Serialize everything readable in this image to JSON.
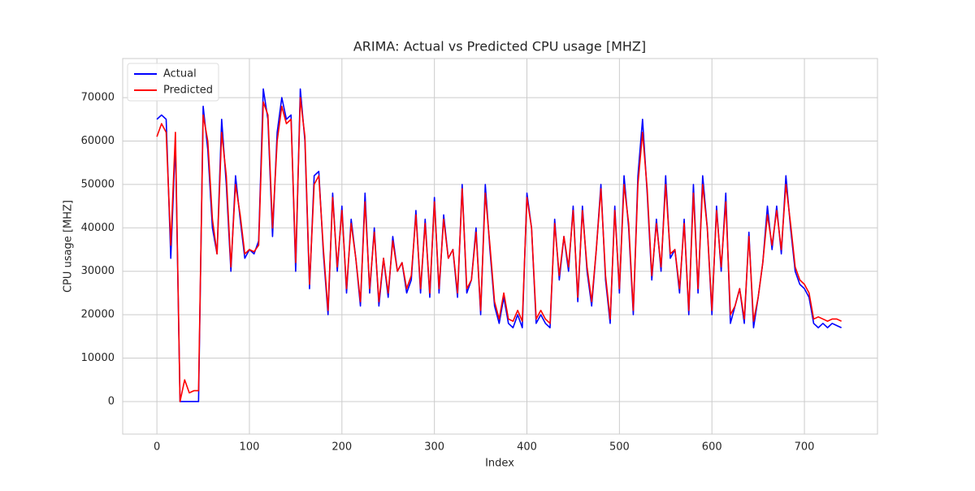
{
  "chart_data": {
    "type": "line",
    "title": "ARIMA: Actual vs Predicted CPU usage [MHZ]",
    "x_label": "Index",
    "y_label": "CPU usage [MHZ]",
    "xlim": [
      -37,
      779
    ],
    "ylim": [
      -7500,
      79000
    ],
    "xticks": [
      0,
      100,
      200,
      300,
      400,
      500,
      600,
      700
    ],
    "yticks": [
      0,
      10000,
      20000,
      30000,
      40000,
      50000,
      60000,
      70000
    ],
    "grid": true,
    "legend": "upper-left",
    "x": [
      0,
      5,
      10,
      15,
      20,
      25,
      30,
      35,
      40,
      45,
      50,
      55,
      60,
      65,
      70,
      75,
      80,
      85,
      90,
      95,
      100,
      105,
      110,
      115,
      120,
      125,
      130,
      135,
      140,
      145,
      150,
      155,
      160,
      165,
      170,
      175,
      180,
      185,
      190,
      195,
      200,
      205,
      210,
      215,
      220,
      225,
      230,
      235,
      240,
      245,
      250,
      255,
      260,
      265,
      270,
      275,
      280,
      285,
      290,
      295,
      300,
      305,
      310,
      315,
      320,
      325,
      330,
      335,
      340,
      345,
      350,
      355,
      360,
      365,
      370,
      375,
      380,
      385,
      390,
      395,
      400,
      405,
      410,
      415,
      420,
      425,
      430,
      435,
      440,
      445,
      450,
      455,
      460,
      465,
      470,
      475,
      480,
      485,
      490,
      495,
      500,
      505,
      510,
      515,
      520,
      525,
      530,
      535,
      540,
      545,
      550,
      555,
      560,
      565,
      570,
      575,
      580,
      585,
      590,
      595,
      600,
      605,
      610,
      615,
      620,
      625,
      630,
      635,
      640,
      645,
      650,
      655,
      660,
      665,
      670,
      675,
      680,
      685,
      690,
      695,
      700,
      705,
      710,
      715,
      720,
      725,
      730,
      735,
      740
    ],
    "series": [
      {
        "name": "Actual",
        "color": "#0000ff",
        "values": [
          65000,
          66000,
          65000,
          33000,
          60000,
          0,
          0,
          0,
          0,
          0,
          68000,
          58000,
          40000,
          34000,
          65000,
          50000,
          30000,
          52000,
          42000,
          33000,
          35000,
          34000,
          37000,
          72000,
          65000,
          38000,
          62000,
          70000,
          65000,
          66000,
          30000,
          72000,
          60000,
          26000,
          52000,
          53000,
          34000,
          20000,
          48000,
          30000,
          45000,
          25000,
          42000,
          33000,
          22000,
          48000,
          25000,
          40000,
          22000,
          33000,
          24000,
          38000,
          30000,
          32000,
          25000,
          28000,
          44000,
          25000,
          42000,
          24000,
          47000,
          25000,
          43000,
          33000,
          35000,
          24000,
          50000,
          25000,
          28000,
          40000,
          20000,
          50000,
          35000,
          22000,
          18000,
          24000,
          18000,
          17000,
          20000,
          17000,
          48000,
          40000,
          18000,
          20000,
          18000,
          17000,
          42000,
          28000,
          38000,
          30000,
          45000,
          23000,
          45000,
          30000,
          22000,
          35000,
          50000,
          28000,
          18000,
          45000,
          25000,
          52000,
          40000,
          20000,
          52000,
          65000,
          48000,
          28000,
          42000,
          30000,
          52000,
          33000,
          35000,
          25000,
          42000,
          20000,
          50000,
          25000,
          52000,
          40000,
          20000,
          45000,
          30000,
          48000,
          18000,
          22000,
          26000,
          18000,
          39000,
          17000,
          24000,
          32000,
          45000,
          35000,
          45000,
          34000,
          52000,
          40000,
          30000,
          27000,
          26000,
          24000,
          18000,
          17000,
          18000,
          17000,
          18000,
          17500,
          17000
        ]
      },
      {
        "name": "Predicted",
        "color": "#ff0000",
        "values": [
          61000,
          64000,
          62000,
          36000,
          62000,
          0,
          5000,
          2000,
          2500,
          2500,
          66000,
          60000,
          42000,
          34000,
          62000,
          52000,
          31000,
          50000,
          43000,
          34000,
          35000,
          34500,
          36000,
          69000,
          66000,
          40000,
          60000,
          68000,
          64000,
          65000,
          32000,
          70000,
          61000,
          27000,
          50000,
          52000,
          35000,
          21000,
          47000,
          31000,
          44000,
          26000,
          41000,
          33000,
          23000,
          46000,
          26000,
          39000,
          23000,
          33000,
          25000,
          37000,
          30000,
          32000,
          26000,
          29000,
          43000,
          26000,
          41000,
          25000,
          46000,
          26000,
          42000,
          33000,
          35000,
          25000,
          49000,
          26000,
          28000,
          39000,
          21000,
          48000,
          36000,
          23000,
          19000,
          25000,
          19000,
          18500,
          21000,
          18500,
          47000,
          40000,
          19000,
          21000,
          19000,
          18000,
          41000,
          29000,
          38000,
          31000,
          44000,
          24000,
          44000,
          31000,
          23000,
          35000,
          49000,
          29000,
          19000,
          44000,
          26000,
          50000,
          41000,
          21000,
          50000,
          62000,
          49000,
          29000,
          41000,
          31000,
          50000,
          34000,
          35000,
          26000,
          41000,
          21000,
          48000,
          26000,
          50000,
          40000,
          21000,
          44000,
          31000,
          46000,
          20000,
          22000,
          26000,
          19000,
          38000,
          18500,
          24000,
          32000,
          43000,
          36000,
          44000,
          35000,
          50000,
          41000,
          31000,
          28000,
          27000,
          25000,
          19000,
          19500,
          19000,
          18500,
          19000,
          19000,
          18500
        ]
      }
    ]
  }
}
